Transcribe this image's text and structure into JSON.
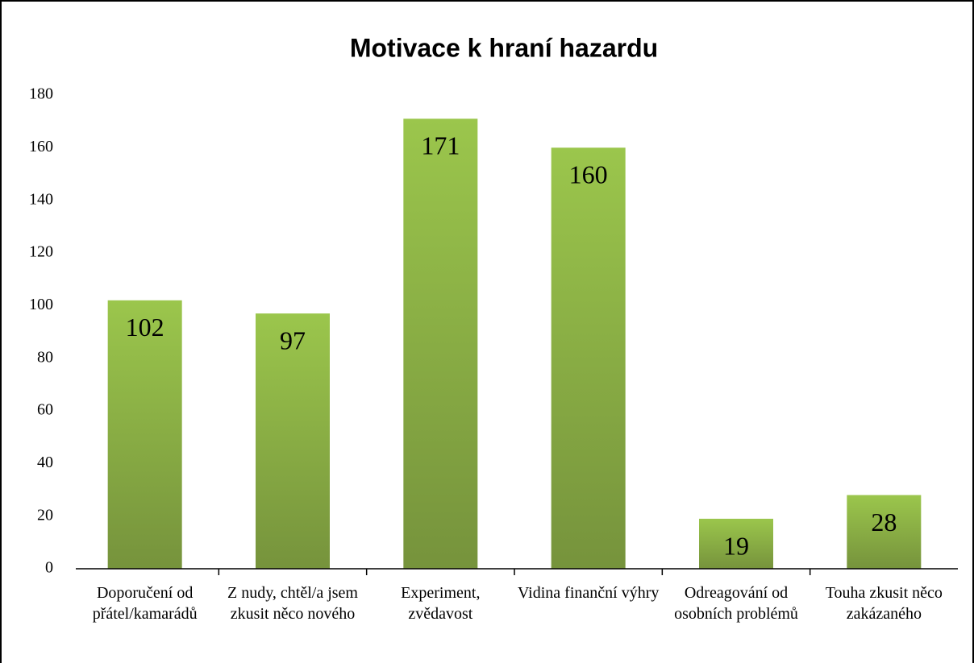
{
  "chart_data": {
    "type": "bar",
    "title": "Motivace k hraní hazardu",
    "categories": [
      "Doporučení od přátel/kamarádů",
      "Z nudy, chtěl/a jsem zkusit něco nového",
      "Experiment, zvědavost",
      "Vidina finanční výhry",
      "Odreagování od osobních problémů",
      "Touha zkusit něco zakázaného"
    ],
    "values": [
      102,
      97,
      171,
      160,
      19,
      28
    ],
    "color": "#9bc64c",
    "ylim": [
      0,
      180
    ],
    "yticks": [
      0,
      20,
      40,
      60,
      80,
      100,
      120,
      140,
      160,
      180
    ],
    "grid": false
  }
}
